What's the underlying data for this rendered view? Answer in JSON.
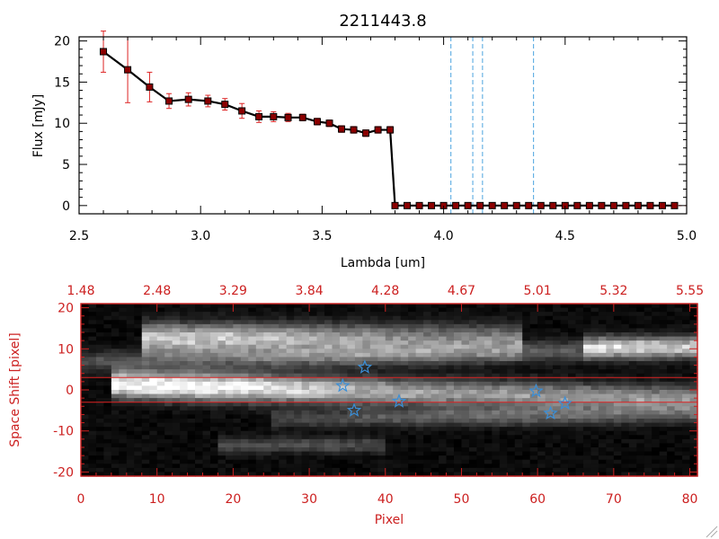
{
  "chart_data": [
    {
      "type": "line",
      "title": "2211443.8",
      "xlabel": "Lambda [um]",
      "ylabel": "Flux [mJy]",
      "xlim": [
        2.5,
        5.0
      ],
      "ylim": [
        -1,
        20.5
      ],
      "x_ticks": [
        "2.5",
        "3.0",
        "3.5",
        "4.0",
        "4.5",
        "5.0"
      ],
      "y_ticks": [
        "0",
        "5",
        "10",
        "15",
        "20"
      ],
      "grid": false,
      "marker": "square",
      "colors": {
        "line": "#000000",
        "marker": "#8b0000",
        "errorbar": "#dd2222",
        "vline": "#4aa3df"
      },
      "series": [
        {
          "x": [
            2.6,
            2.7,
            2.79,
            2.87,
            2.95,
            3.03,
            3.1,
            3.17,
            3.24,
            3.3,
            3.36,
            3.42,
            3.48,
            3.53,
            3.58,
            3.63,
            3.68,
            3.73,
            3.78,
            3.8,
            3.85,
            3.9,
            3.95,
            4.0,
            4.05,
            4.1,
            4.15,
            4.2,
            4.25,
            4.3,
            4.35,
            4.4,
            4.45,
            4.5,
            4.55,
            4.6,
            4.65,
            4.7,
            4.75,
            4.8,
            4.85,
            4.9,
            4.95
          ],
          "y": [
            18.7,
            16.5,
            14.4,
            12.7,
            12.9,
            12.7,
            12.3,
            11.5,
            10.8,
            10.8,
            10.7,
            10.7,
            10.2,
            10.0,
            9.3,
            9.2,
            8.8,
            9.2,
            9.2,
            0,
            0,
            0,
            0,
            0,
            0,
            0,
            0,
            0,
            0,
            0,
            0,
            0,
            0,
            0,
            0,
            0,
            0,
            0,
            0,
            0,
            0,
            0,
            0
          ],
          "yerr": [
            2.5,
            4.0,
            1.8,
            0.9,
            0.8,
            0.7,
            0.7,
            0.9,
            0.7,
            0.6,
            0.5,
            0.4,
            0.4,
            0.4,
            0.4,
            0.4,
            0.4,
            0.4,
            0.4,
            0,
            0,
            0,
            0,
            0,
            0,
            0,
            0,
            0,
            0,
            0,
            0,
            0,
            0,
            0,
            0,
            0,
            0,
            0,
            0,
            0,
            0,
            0,
            0
          ]
        }
      ],
      "vlines": [
        4.03,
        4.12,
        4.16,
        4.37
      ]
    },
    {
      "type": "heatmap",
      "xlabel": "Pixel",
      "ylabel": "Space Shift [pixel]",
      "xlim": [
        0,
        81
      ],
      "ylim": [
        -21,
        21
      ],
      "x_ticks": [
        "0",
        "10",
        "20",
        "30",
        "40",
        "50",
        "60",
        "70",
        "80"
      ],
      "y_ticks": [
        "-20",
        "-10",
        "0",
        "10",
        "20"
      ],
      "top_axis_ticks": [
        "1.48",
        "2.48",
        "3.29",
        "3.84",
        "4.28",
        "4.67",
        "5.01",
        "5.32",
        "5.55"
      ],
      "colormap": "grayscale",
      "hlines": [
        3,
        -3
      ],
      "hline_color": "#dd2222",
      "stars": [
        {
          "x": 37.3,
          "y": 5.5
        },
        {
          "x": 34.4,
          "y": 1.0
        },
        {
          "x": 35.9,
          "y": -5.0
        },
        {
          "x": 41.8,
          "y": -2.8
        },
        {
          "x": 59.8,
          "y": -0.3
        },
        {
          "x": 61.7,
          "y": -5.7
        },
        {
          "x": 63.6,
          "y": -3.3
        }
      ],
      "star_color": "#3a8fd8",
      "axis_color": "#cc2020"
    }
  ]
}
